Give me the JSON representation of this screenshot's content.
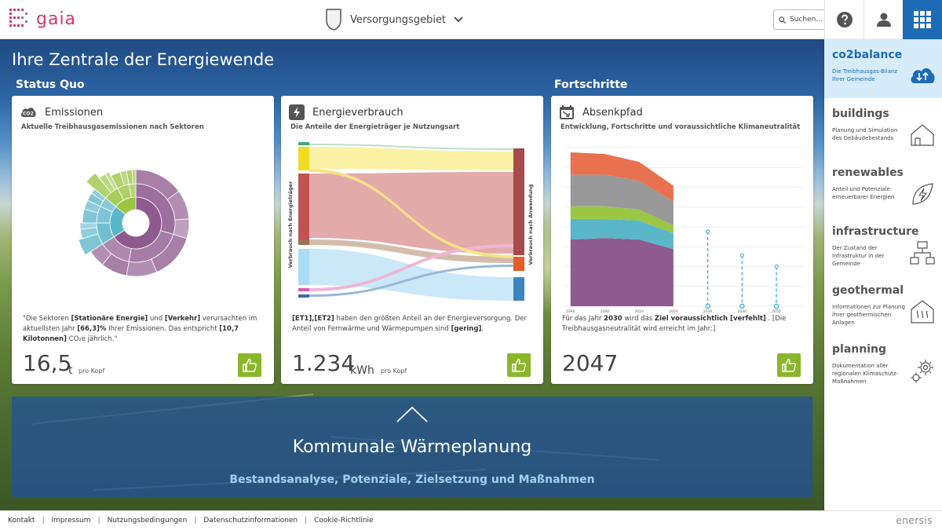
{
  "app": {
    "logo_text": "gaia"
  },
  "header": {
    "region_label": "Versorgungsgebiet",
    "search_placeholder": "Suchen..."
  },
  "hero": {
    "title": "Ihre Zentrale der Energiewende",
    "section_status": "Status Quo",
    "section_progress": "Fortschritte"
  },
  "cards": {
    "emissions": {
      "title": "Emissionen",
      "subtitle": "Aktuelle Treibhausgasemissionen nach Sektoren",
      "text_1": "\"Die Sektoren ",
      "hl_1": "[Stationäre Energie]",
      "text_2": " und ",
      "hl_2": "[Verkehr]",
      "text_3": " verursachten im aktuellsten Jahr ",
      "hl_3": "[66,3]%",
      "text_4": " Ihrer Emissionen. Das entspricht ",
      "hl_4": "[10,7 Kilotonnen]",
      "text_5": " CO₂e jährlich.\"",
      "value": "16,5",
      "unit": "t",
      "per": "pro Kopf"
    },
    "energy": {
      "title": "Energieverbrauch",
      "subtitle": "Die Anteile der Energieträger je Nutzungsart",
      "axis_left": "Verbrauch nach Energieträger",
      "axis_right": "Verbrauch nach Anwendung",
      "hl_1": "[ET1],[ET2]",
      "text_1": " haben den größten Anteil an der Energieversorgung. Der Anteil von Fernwärme und Wärmepumpen sind ",
      "hl_2": "[gering]",
      "text_2": ".",
      "value": "1.234",
      "unit": "kWh",
      "per": "pro Kopf"
    },
    "path": {
      "title": "Absenkpfad",
      "subtitle": "Entwicklung, Fortschritte und voraussichtliche Klimaneutralität",
      "text_1": "Für das Jahr ",
      "hl_1": "2030",
      "text_2": " wird das ",
      "hl_2": "Ziel voraussichtlich [verfehlt]",
      "text_3": " . [Die Treibhausgasneutralität wird erreicht im Jahr:]",
      "value": "2047"
    }
  },
  "chart_data": [
    {
      "type": "pie",
      "title": "",
      "note": "sunburst, three rings",
      "inner": [
        {
          "color": "#8e5b8e",
          "value": 66
        },
        {
          "color": "#5cb6c9",
          "value": 20
        },
        {
          "color": "#9ac644",
          "value": 14
        }
      ]
    },
    {
      "type": "area",
      "title": "",
      "x": [
        1990,
        2000,
        2010,
        2020
      ],
      "x_ticks": [
        "1990",
        "2000",
        "2010",
        "2020",
        "2030",
        "2040",
        "2050"
      ],
      "ylim": [
        0,
        100
      ],
      "series": [
        {
          "color": "#8e5b8e",
          "values": [
            42,
            43,
            42,
            36
          ]
        },
        {
          "color": "#5cb6c9",
          "values": [
            13,
            12,
            12,
            10
          ]
        },
        {
          "color": "#9ac644",
          "values": [
            8,
            8,
            7,
            5
          ]
        },
        {
          "color": "#999999",
          "values": [
            20,
            20,
            18,
            15
          ]
        },
        {
          "color": "#e87250",
          "values": [
            14,
            13,
            12,
            10
          ]
        }
      ],
      "targets": [
        {
          "x": 2030,
          "y": 47
        },
        {
          "x": 2040,
          "y": 32
        },
        {
          "x": 2050,
          "y": 25
        }
      ],
      "target_color": "#2aa4d8"
    }
  ],
  "sidebar": {
    "items": [
      {
        "title": "co2balance",
        "desc": "Die Treibhausgas-Bilanz Ihrer Gemeinde"
      },
      {
        "title": "buildings",
        "desc": "Planung und Simulation des Gebäudebestands"
      },
      {
        "title": "renewables",
        "desc": "Anteil und Potenziale erneuerbarer Energien"
      },
      {
        "title": "infrastructure",
        "desc": "Der Zustand der Infrastruktur in der Gemeinde"
      },
      {
        "title": "geothermal",
        "desc": "Informationen zur Planung ihrer geothermischen Anlagen"
      },
      {
        "title": "planning",
        "desc": "Dokumentation aller regionalen Klimaschutz-Maßnahmen"
      }
    ]
  },
  "banner": {
    "title": "Kommunale Wärmeplanung",
    "subtitle": "Bestandsanalyse, Potenziale, Zielsetzung und Maßnahmen"
  },
  "footer": {
    "links": [
      "Kontakt",
      "Impressum",
      "Nutzungsbedingungen",
      "Datenschutzinformationen",
      "Cookie-Richtlinie"
    ],
    "brand": "enersis"
  },
  "colors": {
    "accent": "#1d6bb5",
    "active_bg": "#d7ecfa",
    "thumb_green": "#8ab72a",
    "logo_pink": "#d8366e"
  }
}
